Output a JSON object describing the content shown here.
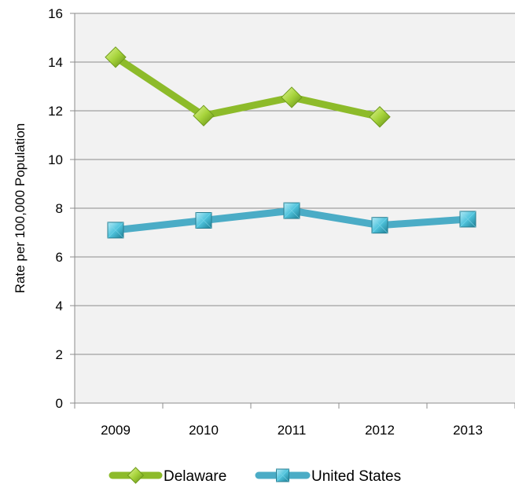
{
  "chart_data": {
    "type": "line",
    "title": "",
    "xlabel": "",
    "ylabel": "Rate per 100,000 Population",
    "ylim": [
      0,
      16
    ],
    "yticks": [
      0,
      2,
      4,
      6,
      8,
      10,
      12,
      14,
      16
    ],
    "categories": [
      "2009",
      "2010",
      "2011",
      "2012",
      "2013"
    ],
    "grid": true,
    "legend": "bottom",
    "series": [
      {
        "name": "Delaware",
        "values": [
          14.2,
          11.8,
          12.55,
          11.75,
          null
        ],
        "color": "#8dbb2a",
        "marker": "diamond"
      },
      {
        "name": "United States",
        "values": [
          7.1,
          7.5,
          7.9,
          7.3,
          7.55
        ],
        "color": "#4bacc6",
        "marker": "square"
      }
    ]
  }
}
